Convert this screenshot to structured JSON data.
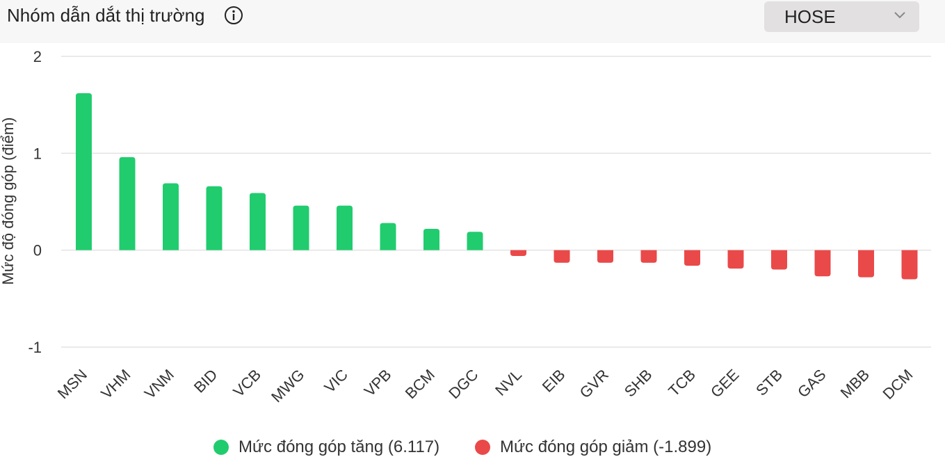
{
  "header": {
    "title": "Nhóm dẫn dắt thị trường",
    "info_icon": "info-circle-icon",
    "exchange_select": {
      "value": "HOSE",
      "icon": "chevron-down-icon"
    }
  },
  "chart_data": {
    "type": "bar",
    "ylabel": "Mức độ đóng góp (điểm)",
    "ylim": [
      -1,
      2
    ],
    "yticks": [
      2,
      1,
      0,
      -1
    ],
    "grid": true,
    "legend_position": "bottom",
    "categories": [
      "MSN",
      "VHM",
      "VNM",
      "BID",
      "VCB",
      "MWG",
      "VIC",
      "VPB",
      "BCM",
      "DGC",
      "NVL",
      "EIB",
      "GVR",
      "SHB",
      "TCB",
      "GEE",
      "STB",
      "GAS",
      "MBB",
      "DCM"
    ],
    "values": [
      1.62,
      0.96,
      0.69,
      0.66,
      0.59,
      0.46,
      0.46,
      0.28,
      0.22,
      0.19,
      -0.06,
      -0.13,
      -0.13,
      -0.13,
      -0.16,
      -0.19,
      -0.2,
      -0.27,
      -0.28,
      -0.3
    ],
    "series": [
      {
        "name": "Mức đóng góp tăng (6.117)",
        "color": "#21cc6e"
      },
      {
        "name": "Mức đóng góp giảm (-1.899)",
        "color": "#ea4949"
      }
    ]
  }
}
